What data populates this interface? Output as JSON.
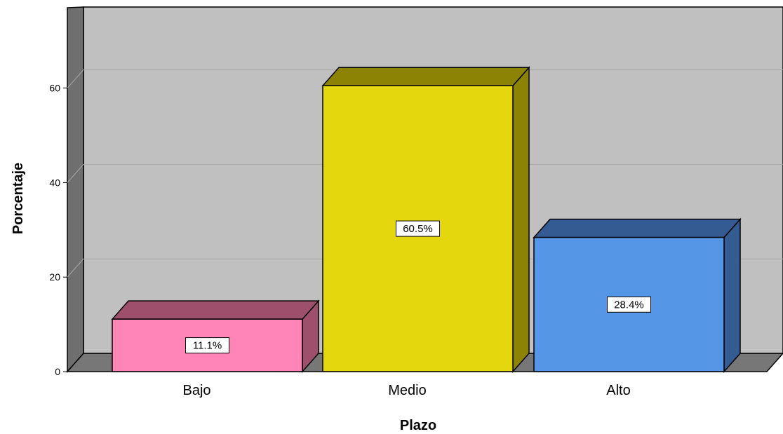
{
  "chart_data": {
    "type": "bar",
    "title": "",
    "xlabel": "Plazo",
    "ylabel": "Porcentaje",
    "categories": [
      "Bajo",
      "Medio",
      "Alto"
    ],
    "values": [
      11.1,
      60.5,
      28.4
    ],
    "data_labels": [
      "11.1%",
      "60.5%",
      "28.4%"
    ],
    "ylim": [
      0,
      77
    ],
    "yticks": [
      0,
      20,
      40,
      60
    ],
    "grid": true,
    "legend": "none",
    "colors": {
      "front": [
        "#ff85b7",
        "#e4d70e",
        "#5696e6"
      ],
      "top": [
        "#9d4f6c",
        "#8c8204",
        "#345c93"
      ],
      "side": [
        "#9d4f6c",
        "#8c8204",
        "#345c93"
      ],
      "wall": "#c0c0c0",
      "wall_side": "#6f6f6f",
      "floor": "#777777"
    }
  }
}
